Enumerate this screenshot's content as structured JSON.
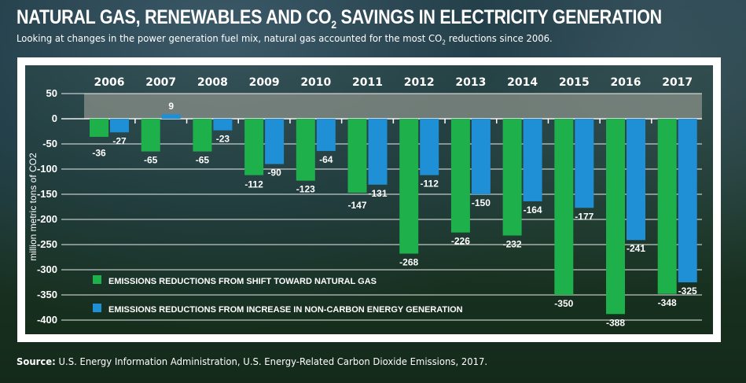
{
  "title_pre": "NATURAL GAS, RENEWABLES AND CO",
  "title_sub": "2",
  "title_post": " SAVINGS IN ELECTRICITY GENERATION",
  "subtitle_pre": "Looking at changes in the power generation fuel mix, natural gas accounted for the most CO",
  "subtitle_sub": "2",
  "subtitle_post": " reductions since 2006.",
  "source_label": "Source:",
  "source_text": " U.S. Energy Information Administration, U.S. Energy-Related Carbon Dioxide Emissions, 2017.",
  "colors": {
    "natural_gas": "#1db04b",
    "non_carbon": "#1f8fd6",
    "band": "#8a9088"
  },
  "chart_data": {
    "type": "bar",
    "categories": [
      "2006",
      "2007",
      "2008",
      "2009",
      "2010",
      "2011",
      "2012",
      "2013",
      "2014",
      "2015",
      "2016",
      "2017"
    ],
    "series": [
      {
        "name": "EMISSIONS REDUCTIONS FROM SHIFT TOWARD NATURAL GAS",
        "values": [
          -36,
          -65,
          -65,
          -112,
          -123,
          -147,
          -268,
          -226,
          -232,
          -350,
          -388,
          -348
        ]
      },
      {
        "name": "EMISSIONS REDUCTIONS FROM INCREASE IN NON-CARBON ENERGY GENERATION",
        "values": [
          -27,
          9,
          -23,
          -90,
          -64,
          -131,
          -112,
          -150,
          -164,
          -177,
          -241,
          -325
        ]
      }
    ],
    "ylabel": "million metric tons of CO2",
    "ylim": [
      -400,
      50
    ],
    "yticks": [
      50,
      0,
      -50,
      -100,
      -150,
      -200,
      -250,
      -300,
      -350,
      -400
    ],
    "grid": true,
    "legend": "bottom-left"
  }
}
